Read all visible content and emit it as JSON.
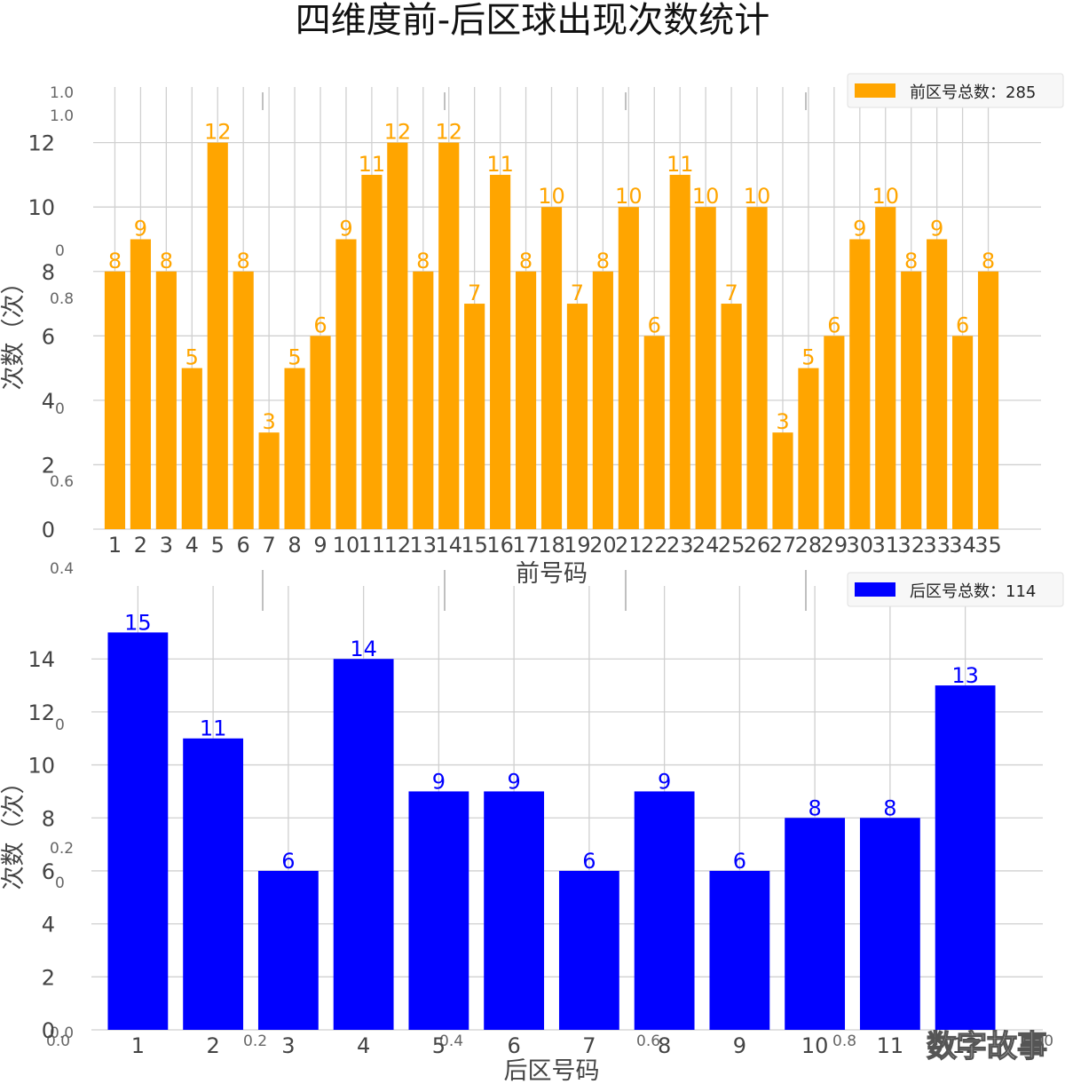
{
  "title": "四维度前-后区球出现次数统计",
  "watermark": "数字故事",
  "background_axis": {
    "ticks": [
      "0.0",
      "0.2",
      "0.4",
      "0.6",
      "0.8",
      "1.0"
    ]
  },
  "chart_data": [
    {
      "type": "bar",
      "color": "#FFA500",
      "categories": [
        "1",
        "2",
        "3",
        "4",
        "5",
        "6",
        "7",
        "8",
        "9",
        "10",
        "11",
        "12",
        "13",
        "14",
        "15",
        "16",
        "17",
        "18",
        "19",
        "20",
        "21",
        "22",
        "23",
        "24",
        "25",
        "26",
        "27",
        "28",
        "29",
        "30",
        "31",
        "32",
        "33",
        "34",
        "35"
      ],
      "series": [
        {
          "name": "前区号总数：285",
          "values": [
            8,
            9,
            8,
            5,
            12,
            8,
            3,
            5,
            6,
            9,
            11,
            12,
            8,
            12,
            7,
            11,
            8,
            10,
            7,
            8,
            10,
            6,
            11,
            10,
            7,
            10,
            3,
            5,
            6,
            9,
            10,
            8,
            9,
            6,
            8
          ]
        }
      ],
      "xlabel": "前号码",
      "ylabel": "次数（次）",
      "ylim": [
        0,
        12.9
      ],
      "yticks": [
        0,
        2,
        4,
        6,
        8,
        10,
        12
      ],
      "grid": true,
      "legend": "top-right"
    },
    {
      "type": "bar",
      "color": "#0000FF",
      "categories": [
        "1",
        "2",
        "3",
        "4",
        "5",
        "6",
        "7",
        "8",
        "9",
        "10",
        "11",
        "12"
      ],
      "series": [
        {
          "name": "后区号总数：114",
          "values": [
            15,
            11,
            6,
            14,
            9,
            9,
            6,
            9,
            6,
            8,
            8,
            13
          ]
        }
      ],
      "xlabel": "后区号码",
      "ylabel": "次数（次）",
      "ylim": [
        0,
        15.75
      ],
      "yticks": [
        0,
        2,
        4,
        6,
        8,
        10,
        12,
        14
      ],
      "grid": true,
      "legend": "top-right"
    }
  ]
}
